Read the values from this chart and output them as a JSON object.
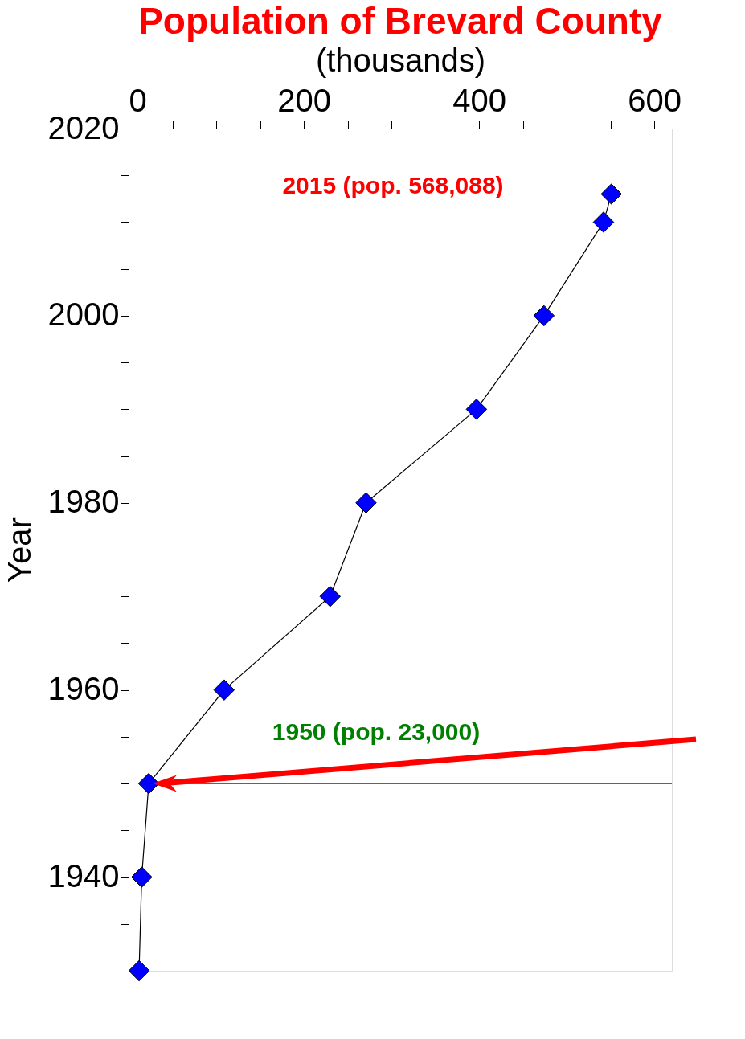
{
  "chart_data": {
    "type": "line",
    "title": "Population of Brevard County",
    "xlabel": "(thousands)",
    "ylabel": "Year",
    "x": [
      12,
      15,
      23,
      109,
      230,
      271,
      397,
      474,
      542,
      551
    ],
    "series": [
      {
        "color": "#0000ff",
        "values": [
          1930,
          1940,
          1950,
          1960,
          1970,
          1980,
          1990,
          2000,
          2010,
          2013
        ]
      }
    ],
    "xlim": [
      0,
      620
    ],
    "xticks": [
      0,
      {
        "value": 50,
        "label": null
      },
      {
        "value": 100,
        "label": null
      },
      {
        "value": 150,
        "label": null
      },
      200,
      {
        "value": 250,
        "label": null
      },
      {
        "value": 300,
        "label": null
      },
      {
        "value": 350,
        "label": null
      },
      400,
      {
        "value": 450,
        "label": null
      },
      {
        "value": 500,
        "label": null
      },
      {
        "value": 550,
        "label": null
      },
      600
    ],
    "ylim": [
      1930,
      2020
    ],
    "yticks": [
      {
        "value": 1935,
        "label": null
      },
      1940,
      {
        "value": 1945,
        "label": null
      },
      {
        "value": 1950,
        "label": null
      },
      {
        "value": 1955,
        "label": null
      },
      1960,
      {
        "value": 1965,
        "label": null
      },
      {
        "value": 1970,
        "label": null
      },
      {
        "value": 1975,
        "label": null
      },
      1980,
      {
        "value": 1985,
        "label": null
      },
      {
        "value": 1990,
        "label": null
      },
      {
        "value": 1995,
        "label": null
      },
      2000,
      {
        "value": 2005,
        "label": null
      },
      {
        "value": 2010,
        "label": null
      },
      {
        "value": 2015,
        "label": null
      },
      2020
    ],
    "marker": "diamond",
    "line_style": "solid",
    "grid": false,
    "ref_lines": [
      {
        "axis": "y",
        "value": 1950,
        "color": "#000000"
      }
    ],
    "annotations": [
      "2015 (pop. 568,088)",
      "1950 (pop. 23,000)"
    ]
  }
}
